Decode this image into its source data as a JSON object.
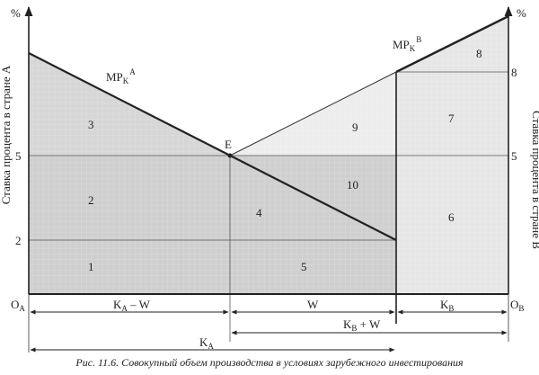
{
  "caption": "Рис. 11.6. Совокупный объем производства в условиях зарубежного инвестирования",
  "axes": {
    "left_unit": "%",
    "right_unit": "%",
    "left_title": "Ставка процента в стране А",
    "right_title": "Ставка процента в стране В",
    "origin_a": "O",
    "origin_a_sub": "A",
    "origin_b": "O",
    "origin_b_sub": "B",
    "left_ticks": [
      "5",
      "2"
    ],
    "right_ticks": [
      "8",
      "5"
    ]
  },
  "curves": {
    "mpk_a_main": "MP",
    "mpk_a_sub": "K",
    "mpk_a_sup": "A",
    "mpk_b_main": "MP",
    "mpk_b_sub": "K",
    "mpk_b_sup": "B",
    "equilibrium": "E"
  },
  "regions": [
    "1",
    "2",
    "3",
    "4",
    "5",
    "6",
    "7",
    "8",
    "9",
    "10"
  ],
  "dimensions": {
    "ka_minus_w_main": "K",
    "ka_minus_w_sub": "A",
    "ka_minus_w_rest": " – W",
    "w": "W",
    "kb_main": "K",
    "kb_sub": "B",
    "kb_plus_w_main": "K",
    "kb_plus_w_sub": "B",
    "kb_plus_w_rest": " + W",
    "ka_main": "K",
    "ka_sub": "A"
  },
  "colors": {
    "shade_dark": "#cfcfcf",
    "shade_mid": "#dadada",
    "shade_light": "#ececec",
    "line": "#222222"
  }
}
